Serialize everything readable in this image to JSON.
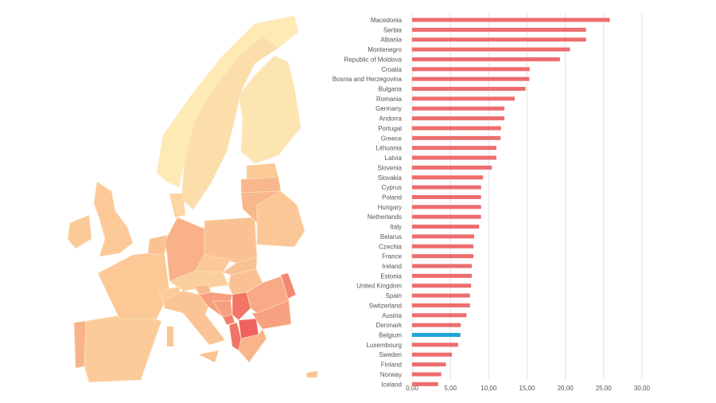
{
  "chart_data": [
    {
      "type": "map",
      "colors": {
        "low": "#fdf0bb",
        "mid": "#fbc896",
        "high": "#f0615d"
      },
      "regions": [
        "Norway",
        "Sweden",
        "Finland",
        "United Kingdom",
        "Ireland",
        "Spain",
        "Portugal",
        "France",
        "Netherlands",
        "Germany",
        "Denmark",
        "Poland",
        "Latvia",
        "Lithuania",
        "Estonia",
        "Belarus",
        "Czechia",
        "Austria",
        "Hungary",
        "Slovakia",
        "Switzerland",
        "Italy",
        "Croatia",
        "Bosnia and Herzegovina",
        "Slovenia",
        "Serbia",
        "Montenegro",
        "Albania",
        "Macedonia",
        "Romania",
        "Republic of Moldova",
        "Bulgaria",
        "Greece",
        "Cyprus"
      ]
    },
    {
      "type": "bar",
      "orientation": "horizontal",
      "title": "",
      "xlabel": "",
      "ylabel": "",
      "xlim": [
        0,
        30
      ],
      "xticks": [
        "0,00",
        "5,00",
        "10,00",
        "15,00",
        "20,00",
        "25,00",
        "30,00"
      ],
      "grid": true,
      "bar_color": "#ec6d6d",
      "highlight_color": "#1fa4d9",
      "highlight": "Belgium",
      "categories": [
        "Macedonia",
        "Serbia",
        "Albania",
        "Montenegro",
        "Republic of Moldova",
        "Croatia",
        "Bosnia and Herzegovina",
        "Bulgaria",
        "Romania",
        "Germany",
        "Andorra",
        "Portugal",
        "Greece",
        "Lithuania",
        "Latvia",
        "Slovenia",
        "Slovakia",
        "Cyprus",
        "Poland",
        "Hungary",
        "Netherlands",
        "Italy",
        "Belarus",
        "Czechia",
        "France",
        "Ireland",
        "Estonia",
        "United Kingdom",
        "Spain",
        "Switzerland",
        "Austria",
        "Denmark",
        "Belgium",
        "Luxembourg",
        "Sweden",
        "Finland",
        "Norway",
        "Iceland"
      ],
      "values": [
        25.8,
        22.7,
        22.7,
        20.6,
        19.3,
        15.35,
        15.3,
        14.8,
        13.4,
        12.05,
        12.05,
        11.6,
        11.55,
        11.0,
        11.0,
        10.4,
        9.25,
        9.0,
        9.0,
        9.0,
        9.0,
        8.75,
        8.1,
        8.0,
        8.0,
        7.8,
        7.8,
        7.7,
        7.55,
        7.55,
        7.1,
        6.35,
        6.3,
        6.0,
        5.2,
        4.4,
        3.8,
        3.4
      ]
    }
  ]
}
